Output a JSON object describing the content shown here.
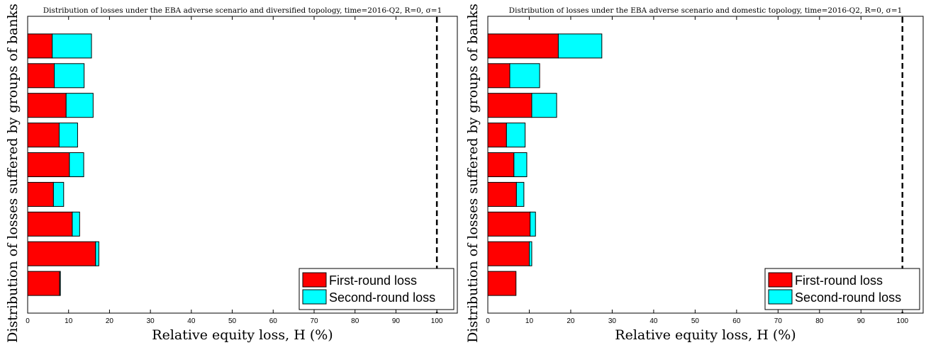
{
  "chart_data": [
    {
      "type": "bar",
      "orientation": "horizontal",
      "stacked": true,
      "title": "Distribution of losses under the EBA adverse scenario and diversified topology, time=2016-Q2, R=0, σ=1",
      "xlabel": "Relative equity loss, H (%)",
      "ylabel": "Distribution of losses suffered by groups of banks",
      "xlim": [
        0,
        105
      ],
      "xticks": [
        0,
        10,
        20,
        30,
        40,
        50,
        60,
        70,
        80,
        90,
        100
      ],
      "threshold_line": 100,
      "legend_position": "bottom-right",
      "series": [
        {
          "name": "First-round loss",
          "color": "#ff0000",
          "values": [
            6.0,
            6.5,
            9.4,
            7.7,
            10.2,
            6.3,
            10.9,
            16.6,
            7.8
          ]
        },
        {
          "name": "Second-round loss",
          "color": "#00ffff",
          "values": [
            9.6,
            7.3,
            6.6,
            4.5,
            3.5,
            2.5,
            1.8,
            0.8,
            0.2
          ]
        }
      ]
    },
    {
      "type": "bar",
      "orientation": "horizontal",
      "stacked": true,
      "title": "Distribution of losses under the EBA adverse scenario and domestic topology, time=2016-Q2, R=0, σ=1",
      "xlabel": "Relative equity loss, H (%)",
      "ylabel": "Distribution of losses suffered by groups of banks",
      "xlim": [
        0,
        105
      ],
      "xticks": [
        0,
        10,
        20,
        30,
        40,
        50,
        60,
        70,
        80,
        90,
        100
      ],
      "threshold_line": 100,
      "legend_position": "bottom-right",
      "series": [
        {
          "name": "First-round loss",
          "color": "#ff0000",
          "values": [
            17.0,
            5.3,
            10.6,
            4.5,
            6.3,
            6.9,
            10.2,
            10.0,
            6.8
          ]
        },
        {
          "name": "Second-round loss",
          "color": "#00ffff",
          "values": [
            10.5,
            7.2,
            6.0,
            4.5,
            3.1,
            1.8,
            1.3,
            0.6,
            0.0
          ]
        }
      ]
    }
  ]
}
